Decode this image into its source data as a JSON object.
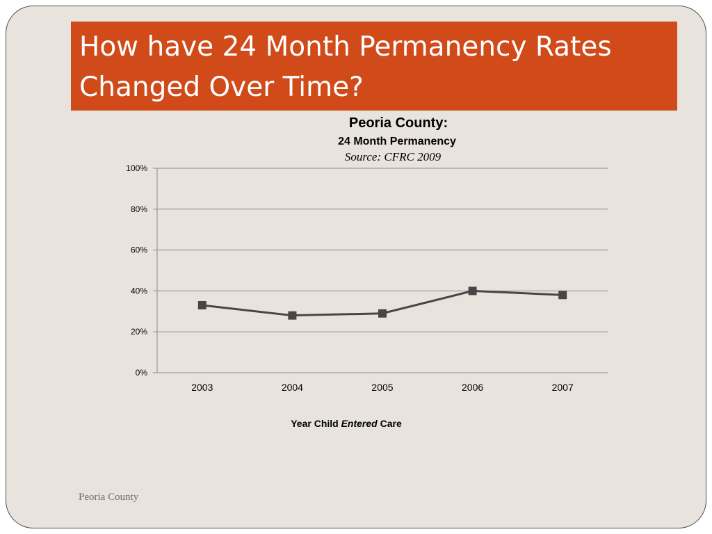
{
  "slide": {
    "title_lines": [
      "How have 24 Month Permanency Rates",
      "Changed Over Time?"
    ],
    "footer": "Peoria County",
    "colors": {
      "banner": "#d04a1a",
      "background": "#e8e4dd",
      "series": "#4a4545",
      "gridline": "#8a8a8a"
    }
  },
  "chart_data": {
    "type": "line",
    "title": "Peoria County:",
    "subtitle": "24 Month Permanency",
    "source": "Source:  CFRC 2009",
    "xlabel_parts": [
      "Year Child ",
      "Entered",
      " Care"
    ],
    "ylabel": "",
    "categories": [
      "2003",
      "2004",
      "2005",
      "2006",
      "2007"
    ],
    "series": [
      {
        "values": [
          33,
          28,
          29,
          40,
          38
        ]
      }
    ],
    "ylim": [
      0,
      100
    ],
    "yticks": [
      0,
      20,
      40,
      60,
      80,
      100
    ],
    "ytick_labels": [
      "0%",
      "20%",
      "40%",
      "60%",
      "80%",
      "100%"
    ],
    "grid": true,
    "legend": "none",
    "marker": "square"
  }
}
